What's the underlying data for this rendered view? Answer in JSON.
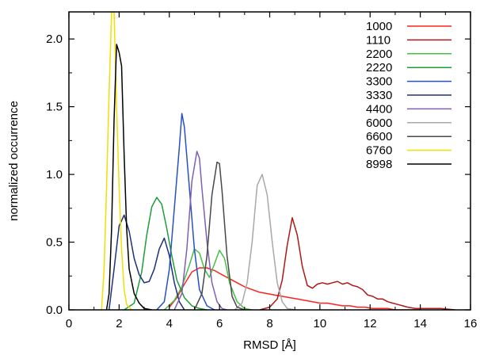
{
  "chart_data": {
    "type": "line",
    "xlabel": "RMSD [Å]",
    "ylabel": "normalized occurrence",
    "xlim": [
      0,
      16
    ],
    "ylim": [
      0,
      2.2
    ],
    "x_ticks": [
      "0",
      "2",
      "4",
      "6",
      "8",
      "10",
      "12",
      "14",
      "16"
    ],
    "y_ticks": [
      "0.0",
      "0.5",
      "1.0",
      "1.5",
      "2.0"
    ],
    "grid": false,
    "legend_position": "top-right",
    "series": [
      {
        "name": "1000",
        "color": "#ff2020",
        "x": [
          4.0,
          4.3,
          4.6,
          4.9,
          5.2,
          5.5,
          5.8,
          6.1,
          6.4,
          6.7,
          7.0,
          7.3,
          7.6,
          7.9,
          8.2,
          8.5,
          8.8,
          9.1,
          9.4,
          9.7,
          10.0,
          10.3,
          10.6,
          10.9,
          11.2,
          11.5,
          11.8,
          12.1,
          12.4,
          12.7,
          13.0,
          13.5,
          14.0
        ],
        "y": [
          0.02,
          0.09,
          0.19,
          0.28,
          0.31,
          0.31,
          0.29,
          0.26,
          0.23,
          0.2,
          0.17,
          0.15,
          0.13,
          0.12,
          0.11,
          0.1,
          0.09,
          0.08,
          0.07,
          0.06,
          0.05,
          0.05,
          0.04,
          0.03,
          0.03,
          0.02,
          0.02,
          0.01,
          0.01,
          0.01,
          0.0,
          0.0,
          0.0
        ]
      },
      {
        "name": "1110",
        "color": "#b01818",
        "x": [
          7.6,
          8.0,
          8.3,
          8.5,
          8.7,
          8.9,
          9.1,
          9.3,
          9.5,
          9.7,
          9.9,
          10.1,
          10.3,
          10.5,
          10.7,
          10.9,
          11.1,
          11.3,
          11.5,
          11.7,
          11.9,
          12.1,
          12.3,
          12.5,
          12.7,
          12.9,
          13.1,
          13.3,
          13.5,
          13.8,
          14.2,
          14.8,
          15.4
        ],
        "y": [
          0.0,
          0.02,
          0.08,
          0.22,
          0.48,
          0.68,
          0.55,
          0.32,
          0.18,
          0.16,
          0.19,
          0.2,
          0.19,
          0.2,
          0.21,
          0.19,
          0.2,
          0.18,
          0.17,
          0.15,
          0.11,
          0.1,
          0.08,
          0.08,
          0.06,
          0.05,
          0.04,
          0.03,
          0.02,
          0.01,
          0.01,
          0.01,
          0.0
        ]
      },
      {
        "name": "2200",
        "color": "#48c048",
        "x": [
          3.8,
          4.2,
          4.5,
          4.8,
          5.0,
          5.2,
          5.4,
          5.6,
          5.8,
          6.0,
          6.2,
          6.4,
          6.7,
          7.0,
          7.3
        ],
        "y": [
          0.0,
          0.07,
          0.17,
          0.33,
          0.45,
          0.42,
          0.3,
          0.24,
          0.34,
          0.44,
          0.38,
          0.2,
          0.06,
          0.01,
          0.0
        ]
      },
      {
        "name": "2220",
        "color": "#1e9e3a",
        "x": [
          2.2,
          2.6,
          2.9,
          3.1,
          3.3,
          3.5,
          3.7,
          3.9,
          4.1,
          4.3,
          4.6,
          4.9,
          5.2,
          5.5
        ],
        "y": [
          0.0,
          0.05,
          0.28,
          0.55,
          0.76,
          0.83,
          0.78,
          0.6,
          0.4,
          0.22,
          0.09,
          0.03,
          0.01,
          0.0
        ]
      },
      {
        "name": "3300",
        "color": "#2850c0",
        "x": [
          3.5,
          3.8,
          4.0,
          4.2,
          4.4,
          4.5,
          4.6,
          4.8,
          5.0,
          5.2,
          5.5,
          5.8
        ],
        "y": [
          0.0,
          0.06,
          0.3,
          0.75,
          1.2,
          1.45,
          1.35,
          0.9,
          0.45,
          0.15,
          0.03,
          0.0
        ]
      },
      {
        "name": "3330",
        "color": "#20307a",
        "x": [
          1.6,
          1.8,
          2.0,
          2.2,
          2.4,
          2.6,
          2.8,
          3.0,
          3.2,
          3.4,
          3.6,
          3.8,
          4.0,
          4.2,
          4.4,
          4.6
        ],
        "y": [
          0.0,
          0.3,
          0.62,
          0.7,
          0.58,
          0.38,
          0.26,
          0.2,
          0.21,
          0.3,
          0.45,
          0.53,
          0.4,
          0.2,
          0.06,
          0.0
        ]
      },
      {
        "name": "4400",
        "color": "#8060b0",
        "x": [
          4.2,
          4.5,
          4.7,
          4.9,
          5.1,
          5.2,
          5.3,
          5.5,
          5.7,
          5.9,
          6.1,
          6.3
        ],
        "y": [
          0.0,
          0.12,
          0.45,
          0.95,
          1.17,
          1.12,
          0.9,
          0.5,
          0.2,
          0.06,
          0.01,
          0.0
        ]
      },
      {
        "name": "6000",
        "color": "#a8a8a8",
        "x": [
          6.6,
          6.9,
          7.1,
          7.3,
          7.5,
          7.7,
          7.9,
          8.1,
          8.3,
          8.5,
          8.7,
          9.0
        ],
        "y": [
          0.0,
          0.05,
          0.2,
          0.5,
          0.92,
          1.0,
          0.85,
          0.5,
          0.2,
          0.06,
          0.01,
          0.0
        ]
      },
      {
        "name": "6600",
        "color": "#484848",
        "x": [
          5.0,
          5.3,
          5.5,
          5.7,
          5.9,
          6.0,
          6.1,
          6.3,
          6.5,
          6.7,
          7.0
        ],
        "y": [
          0.0,
          0.12,
          0.4,
          0.85,
          1.09,
          1.08,
          0.88,
          0.4,
          0.1,
          0.02,
          0.0
        ]
      },
      {
        "name": "6760",
        "color": "#f0e000",
        "x": [
          1.3,
          1.4,
          1.5,
          1.6,
          1.7,
          1.8,
          1.9,
          2.0,
          2.1,
          2.2,
          2.3,
          2.5
        ],
        "y": [
          0.0,
          0.3,
          0.9,
          1.6,
          2.2,
          2.2,
          1.5,
          0.9,
          0.45,
          0.15,
          0.04,
          0.0
        ]
      },
      {
        "name": "8998",
        "color": "#000000",
        "x": [
          1.5,
          1.6,
          1.7,
          1.8,
          1.9,
          2.0,
          2.1,
          2.2,
          2.3,
          2.4,
          2.6,
          2.8,
          3.0,
          3.3
        ],
        "y": [
          0.0,
          0.12,
          0.6,
          1.4,
          1.96,
          1.9,
          1.8,
          1.15,
          0.6,
          0.3,
          0.12,
          0.05,
          0.01,
          0.0
        ]
      }
    ]
  }
}
